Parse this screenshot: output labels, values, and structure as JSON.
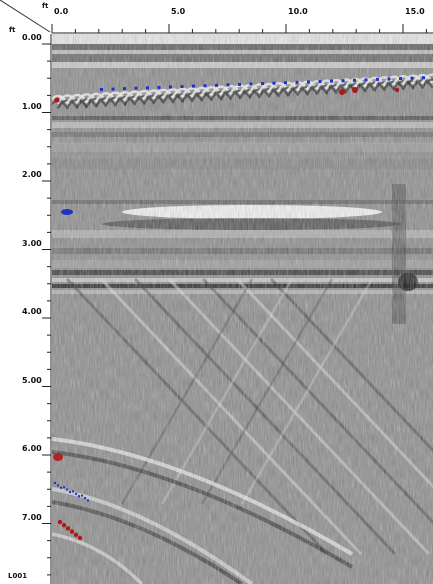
{
  "radargram": {
    "x_axis": {
      "unit": "ft",
      "ticks": [
        "0.0",
        "5.0",
        "10.0",
        "15.0"
      ],
      "tick_values": [
        0,
        5,
        10,
        15
      ]
    },
    "y_axis": {
      "unit": "ft",
      "ticks": [
        "0.00",
        "1.00",
        "2.00",
        "3.00",
        "4.00",
        "5.00",
        "6.00",
        "7.00"
      ],
      "tick_values": [
        0,
        1,
        2,
        3,
        4,
        5,
        6,
        7
      ]
    },
    "scan_label": "L001",
    "colors": {
      "background_gray": "#8c8c8c",
      "positive_marker": "#1e32c8",
      "negative_marker": "#b01818"
    }
  }
}
